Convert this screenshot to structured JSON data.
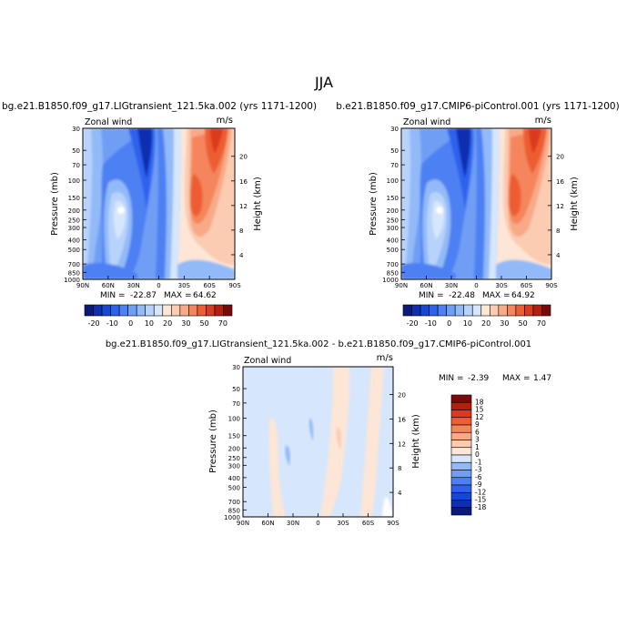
{
  "page": {
    "season_title": "JJA"
  },
  "colorbar_main": {
    "colors": [
      "#0a1a7a",
      "#0d2fb0",
      "#1846d9",
      "#2e62ee",
      "#4d80f3",
      "#6f9ef5",
      "#93baf8",
      "#b8d3fb",
      "#d6e6fd",
      "#fde6d6",
      "#fbcbb2",
      "#f8aa88",
      "#f5855c",
      "#ee5d33",
      "#d93b1c",
      "#b41f0f",
      "#7a0a0a"
    ],
    "labels": [
      "-20",
      "-10",
      "0",
      "10",
      "20",
      "30",
      "50",
      "70"
    ]
  },
  "colorbar_diff": {
    "colors": [
      "#0a1a7a",
      "#0d2fb0",
      "#1846d9",
      "#2e62ee",
      "#4d80f3",
      "#6f9ef5",
      "#93baf8",
      "#d6e6fd",
      "#fde6d6",
      "#fbcbb2",
      "#f8aa88",
      "#f5855c",
      "#ee5d33",
      "#d93b1c",
      "#b41f0f",
      "#7a0a0a"
    ],
    "labels": [
      "18",
      "15",
      "12",
      "9",
      "6",
      "3",
      "1",
      "0",
      "-1",
      "-3",
      "-6",
      "-9",
      "-12",
      "-15",
      "-18"
    ]
  },
  "chart_data": [
    {
      "type": "heatmap",
      "title": "bg.e21.B1850.f09_g17.LIGtransient_121.5ka.002 (yrs 1171-1200)",
      "subtitle_left": "Zonal wind",
      "units": "m/s",
      "xlabel": "",
      "ylabel": "Pressure (mb)",
      "ylabel_right": "Height (km)",
      "x_ticks": [
        "90N",
        "60N",
        "30N",
        "0",
        "30S",
        "60S",
        "90S"
      ],
      "y_ticks": [
        "30",
        "50",
        "70",
        "100",
        "150",
        "200",
        "250",
        "300",
        "400",
        "500",
        "700",
        "850",
        "1000"
      ],
      "y_right_ticks": [
        "20",
        "16",
        "12",
        "8",
        "4"
      ],
      "min_label": "MIN =",
      "min_value": "-22.87",
      "max_label": "MAX =",
      "max_value": "64.62"
    },
    {
      "type": "heatmap",
      "title": "b.e21.B1850.f09_g17.CMIP6-piControl.001 (yrs 1171-1200)",
      "subtitle_left": "Zonal wind",
      "units": "m/s",
      "xlabel": "",
      "ylabel": "Pressure (mb)",
      "ylabel_right": "Height (km)",
      "x_ticks": [
        "90N",
        "60N",
        "30N",
        "0",
        "30S",
        "60S",
        "90S"
      ],
      "y_ticks": [
        "30",
        "50",
        "70",
        "100",
        "150",
        "200",
        "250",
        "300",
        "400",
        "500",
        "700",
        "850",
        "1000"
      ],
      "y_right_ticks": [
        "20",
        "16",
        "12",
        "8",
        "4"
      ],
      "min_label": "MIN =",
      "min_value": "-22.48",
      "max_label": "MAX =",
      "max_value": "64.92"
    },
    {
      "type": "heatmap",
      "title": "bg.e21.B1850.f09_g17.LIGtransient_121.5ka.002 - b.e21.B1850.f09_g17.CMIP6-piControl.001",
      "subtitle_left": "Zonal wind",
      "units": "m/s",
      "xlabel": "",
      "ylabel": "Pressure (mb)",
      "ylabel_right": "Height (km)",
      "x_ticks": [
        "90N",
        "60N",
        "30N",
        "0",
        "30S",
        "60S",
        "90S"
      ],
      "y_ticks": [
        "30",
        "50",
        "70",
        "100",
        "150",
        "200",
        "250",
        "300",
        "400",
        "500",
        "700",
        "850",
        "1000"
      ],
      "y_right_ticks": [
        "20",
        "16",
        "12",
        "8",
        "4"
      ],
      "min_label": "MIN =",
      "min_value": "-2.39",
      "max_label": "MAX =",
      "max_value": "1.47"
    }
  ]
}
